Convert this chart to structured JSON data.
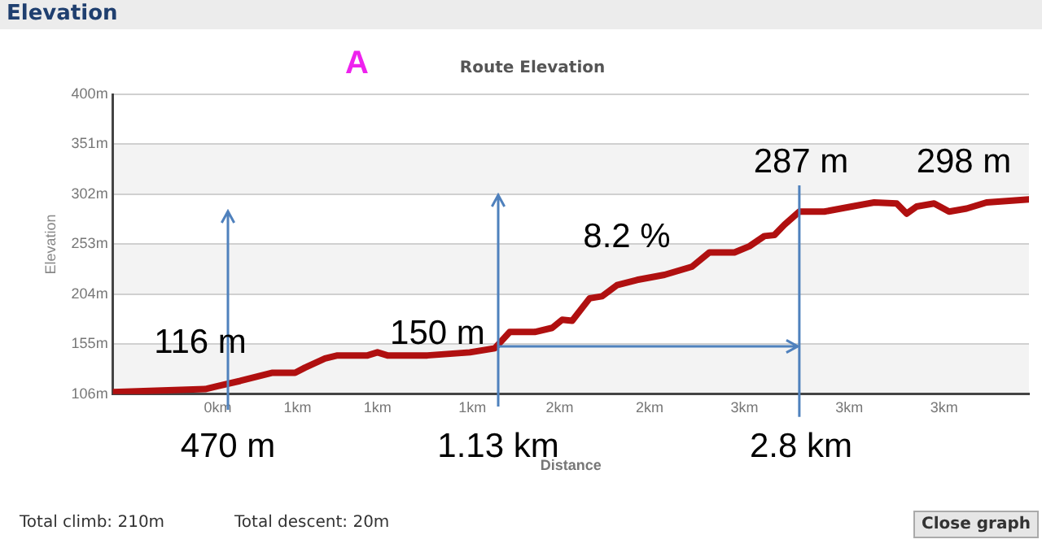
{
  "chart_data": {
    "type": "line",
    "title": "Route Elevation",
    "xlabel": "Distance",
    "ylabel": "Elevation",
    "x": [
      0.05,
      0.42,
      0.47,
      0.56,
      0.69,
      0.78,
      0.82,
      0.9,
      0.95,
      1.07,
      1.11,
      1.15,
      1.31,
      1.48,
      1.58,
      1.64,
      1.74,
      1.81,
      1.85,
      1.89,
      1.96,
      2.01,
      2.07,
      2.15,
      2.26,
      2.37,
      2.44,
      2.54,
      2.6,
      2.66,
      2.7,
      2.74,
      2.8,
      2.9,
      3.01,
      3.1,
      3.19,
      3.23,
      3.27,
      3.34,
      3.4,
      3.47,
      3.55,
      3.72
    ],
    "series": [
      {
        "color": "#b01010",
        "values": [
          108,
          111,
          114,
          119,
          127,
          127,
          132,
          141,
          144,
          144,
          147,
          144,
          144,
          147,
          151,
          167,
          167,
          171,
          179,
          178,
          200,
          202,
          213,
          218,
          223,
          231,
          245,
          245,
          251,
          261,
          262,
          272,
          285,
          285,
          290,
          294,
          293,
          283,
          290,
          293,
          285,
          288,
          294,
          297
        ]
      }
    ],
    "xlim": [
      0.05,
      3.72
    ],
    "xticks": [
      {
        "value": 0.47,
        "label": "0km"
      },
      {
        "value": 0.79,
        "label": "1km"
      },
      {
        "value": 1.11,
        "label": "1km"
      },
      {
        "value": 1.49,
        "label": "1km"
      },
      {
        "value": 1.84,
        "label": "2km"
      },
      {
        "value": 2.2,
        "label": "2km"
      },
      {
        "value": 2.58,
        "label": "3km"
      },
      {
        "value": 3.0,
        "label": "3km"
      },
      {
        "value": 3.38,
        "label": "3km"
      }
    ],
    "ylim": [
      106,
      400
    ],
    "yticks": [
      {
        "value": 106,
        "label": "106m"
      },
      {
        "value": 155,
        "label": "155m"
      },
      {
        "value": 204,
        "label": "204m"
      },
      {
        "value": 253,
        "label": "253m"
      },
      {
        "value": 302,
        "label": "302m"
      },
      {
        "value": 351,
        "label": "351m"
      },
      {
        "value": 400,
        "label": "400m"
      }
    ],
    "grid": "y",
    "legend": false,
    "marker": "none",
    "line_style": "solid",
    "ref_lines": [
      {
        "axis": "x",
        "value": 2.8,
        "color": "#4f81bd"
      }
    ],
    "annotations": [
      "Elevation",
      "A",
      "Total climb: 210m",
      "Total descent: 20m",
      "Close graph",
      "116 m",
      {
        "text": "150 m",
        "x": 1.58,
        "y": 151
      },
      "8.2 %",
      "287 m",
      "298 m",
      "470 m",
      "1.13 km",
      "2.8 km"
    ]
  }
}
